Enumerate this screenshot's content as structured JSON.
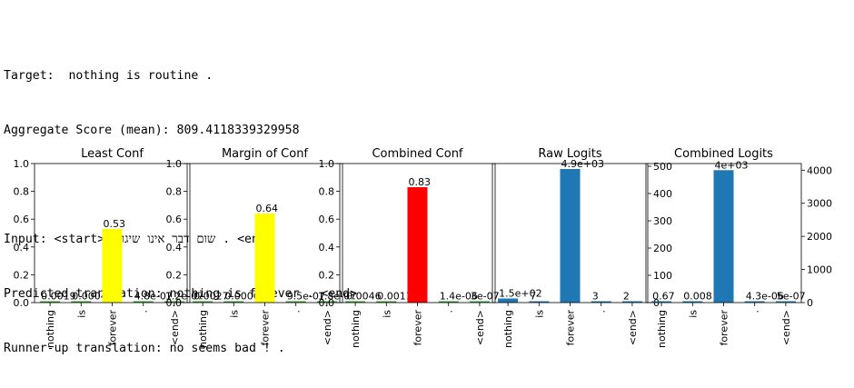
{
  "log": {
    "target_line": "Target:  nothing is routine .",
    "score_line": "Aggregate Score (mean): 809.4118339329958",
    "input_line": "Input: <start> שום דבר אינו שיגרה . <end>",
    "predicted_line": "Predicted translation: nothing is forever . <end>",
    "runner_line": "Runner-up translation: no seems bad ! ."
  },
  "chart_data": [
    {
      "type": "bar",
      "title": "Least Conf",
      "categories": [
        "nothing",
        "is",
        "forever",
        ".",
        "<end>"
      ],
      "values": [
        0.0019,
        0.00048,
        0.53,
        4.8e-07,
        1.2e-07
      ],
      "value_labels": [
        "0.0019",
        "0.00048",
        "0.53",
        "4.8e-07",
        "1.2e-07"
      ],
      "colors": [
        "#2ca02c",
        "#2ca02c",
        "#ffff00",
        "#2ca02c",
        "#2ca02c"
      ],
      "ylim": [
        0,
        1.0
      ],
      "yticks": [
        "0.0",
        "0.2",
        "0.4",
        "0.6",
        "0.8",
        "1.0"
      ],
      "y_axis_side": "left"
    },
    {
      "type": "bar",
      "title": "Margin of Conf",
      "categories": [
        "nothing",
        "is",
        "forever",
        ".",
        "<end>"
      ],
      "values": [
        0.0027,
        0.00066,
        0.64,
        9.5e-07,
        1.8e-07
      ],
      "value_labels": [
        "0.0027",
        "0.00066",
        "0.64",
        "9.5e-07",
        "1.8e-07"
      ],
      "colors": [
        "#2ca02c",
        "#2ca02c",
        "#ffff00",
        "#2ca02c",
        "#2ca02c"
      ],
      "ylim": [
        0,
        1.0
      ],
      "yticks": [
        "0.0",
        "0.2",
        "0.4",
        "0.6",
        "0.8",
        "1.0"
      ],
      "y_axis_side": "left"
    },
    {
      "type": "bar",
      "title": "Combined Conf",
      "categories": [
        "nothing",
        "is",
        "forever",
        ".",
        "<end>"
      ],
      "values": [
        0.0046,
        0.0011,
        0.83,
        1.4e-06,
        3e-07
      ],
      "value_labels": [
        "0.0046",
        "0.0011",
        "0.83",
        "1.4e-06",
        "3e-07"
      ],
      "colors": [
        "#2ca02c",
        "#2ca02c",
        "#ff0000",
        "#2ca02c",
        "#2ca02c"
      ],
      "ylim": [
        0,
        1.0
      ],
      "yticks": [
        "0.0",
        "0.2",
        "0.4",
        "0.6",
        "0.8",
        "1.0"
      ],
      "y_axis_side": "left"
    },
    {
      "type": "bar",
      "title": "Raw Logits",
      "categories": [
        "nothing",
        "is",
        "forever",
        ".",
        "<end>"
      ],
      "values": [
        150,
        7,
        4900,
        3,
        2
      ],
      "value_labels": [
        "1.5e+02",
        "7",
        "4.9e+03",
        "3",
        "2"
      ],
      "colors": [
        "#1f77b4",
        "#1f77b4",
        "#1f77b4",
        "#1f77b4",
        "#1f77b4"
      ],
      "ylim": [
        0,
        5100
      ],
      "yticks": [
        "0",
        "100",
        "200",
        "300",
        "400",
        "500"
      ],
      "y_axis_side": "right"
    },
    {
      "type": "bar",
      "title": "Combined Logits",
      "categories": [
        "nothing",
        "is",
        "forever",
        ".",
        "<end>"
      ],
      "values": [
        0.67,
        0.008,
        4000,
        4.3e-06,
        5e-07
      ],
      "value_labels": [
        "0.67",
        "0.008",
        "4e+03",
        "4.3e-06",
        "5e-07"
      ],
      "colors": [
        "#1f77b4",
        "#1f77b4",
        "#1f77b4",
        "#1f77b4",
        "#1f77b4"
      ],
      "ylim": [
        0,
        4200
      ],
      "yticks": [
        "0",
        "1000",
        "2000",
        "3000",
        "4000"
      ],
      "y_axis_side": "right"
    }
  ]
}
